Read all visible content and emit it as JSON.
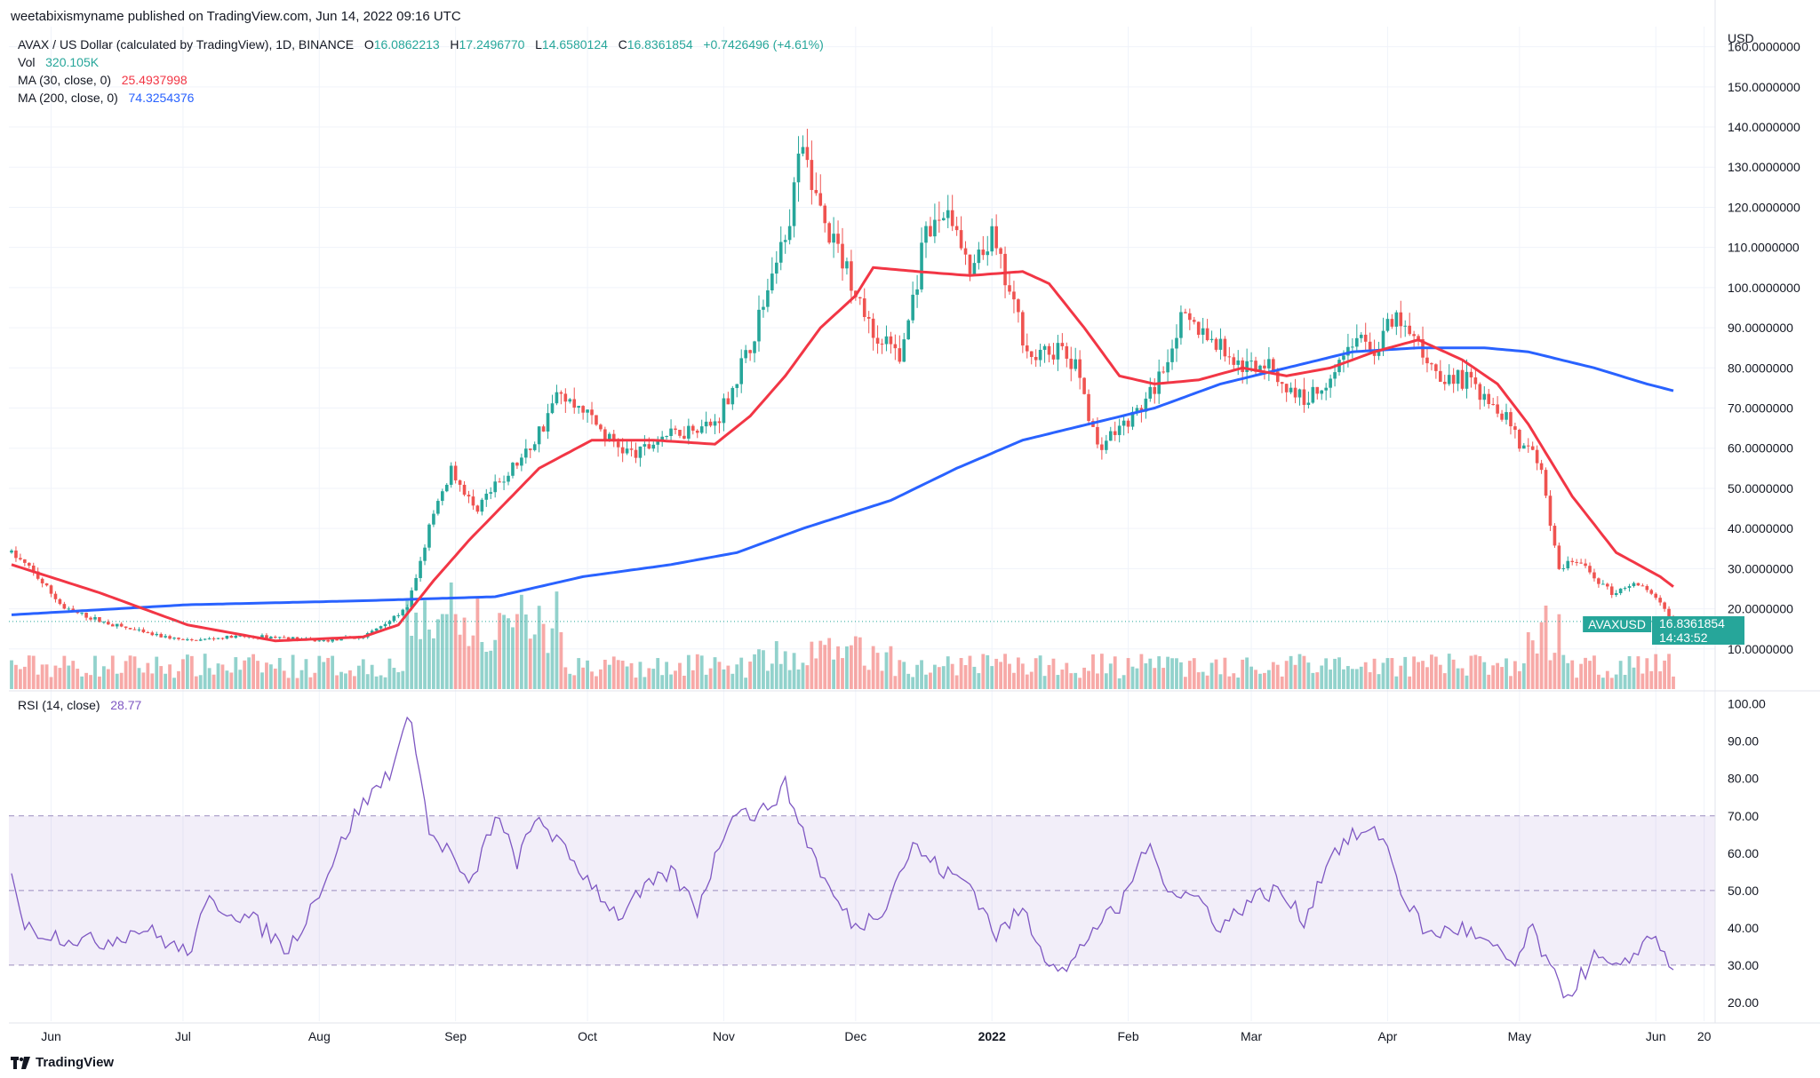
{
  "header": {
    "publisher": "weetabixismyname published on TradingView.com, Jun 14, 2022 09:16 UTC",
    "symbol_title": "AVAX / US Dollar (calculated by TradingView), 1D, BINANCE",
    "ohlc": {
      "o_label": "O",
      "o": "16.0862213",
      "h_label": "H",
      "h": "17.2496770",
      "l_label": "L",
      "l": "14.6580124",
      "c_label": "C",
      "c": "16.8361854",
      "change": "+0.7426496 (+4.61%)"
    },
    "vol_label": "Vol",
    "vol_value": "320.105K",
    "ma30_label": "MA (30, close, 0)",
    "ma30_value": "25.4937998",
    "ma200_label": "MA (200, close, 0)",
    "ma200_value": "74.3254376"
  },
  "rsi": {
    "label": "RSI (14, close)",
    "value": "28.77"
  },
  "last_price": {
    "symbol": "AVAXUSD",
    "price": "16.8361854",
    "countdown": "14:43:52"
  },
  "brand": "TradingView",
  "colors": {
    "up": "#26a69a",
    "down": "#ef5350",
    "ma30": "#f23645",
    "ma200": "#2962ff",
    "rsi": "#7e57c2"
  },
  "chart_data": [
    {
      "type": "candlestick",
      "currency_label": "USD",
      "ylim": [
        0,
        165
      ],
      "y_ticks": [
        "10.0000000",
        "20.0000000",
        "30.0000000",
        "40.0000000",
        "50.0000000",
        "60.0000000",
        "70.0000000",
        "80.0000000",
        "90.0000000",
        "100.0000000",
        "110.0000000",
        "120.0000000",
        "130.0000000",
        "140.0000000",
        "150.0000000",
        "160.0000000"
      ],
      "x_ticks": [
        "Jun",
        "Jul",
        "Aug",
        "Sep",
        "Oct",
        "Nov",
        "Dec",
        "2022",
        "Feb",
        "Mar",
        "Apr",
        "May",
        "Jun",
        "20"
      ],
      "close_anchors": [
        {
          "d": 0,
          "v": 34
        },
        {
          "d": 5,
          "v": 29
        },
        {
          "d": 12,
          "v": 20
        },
        {
          "d": 20,
          "v": 17
        },
        {
          "d": 30,
          "v": 14
        },
        {
          "d": 40,
          "v": 12
        },
        {
          "d": 50,
          "v": 13
        },
        {
          "d": 60,
          "v": 13
        },
        {
          "d": 70,
          "v": 12
        },
        {
          "d": 80,
          "v": 13
        },
        {
          "d": 90,
          "v": 20
        },
        {
          "d": 95,
          "v": 40
        },
        {
          "d": 100,
          "v": 55
        },
        {
          "d": 105,
          "v": 45
        },
        {
          "d": 110,
          "v": 50
        },
        {
          "d": 118,
          "v": 60
        },
        {
          "d": 124,
          "v": 73
        },
        {
          "d": 130,
          "v": 70
        },
        {
          "d": 136,
          "v": 62
        },
        {
          "d": 142,
          "v": 58
        },
        {
          "d": 148,
          "v": 63
        },
        {
          "d": 155,
          "v": 65
        },
        {
          "d": 160,
          "v": 66
        },
        {
          "d": 168,
          "v": 85
        },
        {
          "d": 175,
          "v": 110
        },
        {
          "d": 180,
          "v": 135
        },
        {
          "d": 185,
          "v": 115
        },
        {
          "d": 190,
          "v": 105
        },
        {
          "d": 196,
          "v": 88
        },
        {
          "d": 202,
          "v": 82
        },
        {
          "d": 208,
          "v": 112
        },
        {
          "d": 213,
          "v": 120
        },
        {
          "d": 218,
          "v": 103
        },
        {
          "d": 223,
          "v": 112
        },
        {
          "d": 228,
          "v": 95
        },
        {
          "d": 232,
          "v": 82
        },
        {
          "d": 238,
          "v": 85
        },
        {
          "d": 243,
          "v": 78
        },
        {
          "d": 247,
          "v": 60
        },
        {
          "d": 252,
          "v": 65
        },
        {
          "d": 257,
          "v": 70
        },
        {
          "d": 262,
          "v": 80
        },
        {
          "d": 266,
          "v": 92
        },
        {
          "d": 270,
          "v": 90
        },
        {
          "d": 275,
          "v": 85
        },
        {
          "d": 280,
          "v": 80
        },
        {
          "d": 285,
          "v": 82
        },
        {
          "d": 290,
          "v": 75
        },
        {
          "d": 295,
          "v": 72
        },
        {
          "d": 300,
          "v": 78
        },
        {
          "d": 305,
          "v": 87
        },
        {
          "d": 310,
          "v": 85
        },
        {
          "d": 315,
          "v": 92
        },
        {
          "d": 320,
          "v": 85
        },
        {
          "d": 325,
          "v": 78
        },
        {
          "d": 330,
          "v": 77
        },
        {
          "d": 335,
          "v": 74
        },
        {
          "d": 340,
          "v": 68
        },
        {
          "d": 344,
          "v": 60
        },
        {
          "d": 348,
          "v": 55
        },
        {
          "d": 350,
          "v": 40
        },
        {
          "d": 352,
          "v": 30
        },
        {
          "d": 356,
          "v": 32
        },
        {
          "d": 360,
          "v": 28
        },
        {
          "d": 364,
          "v": 24
        },
        {
          "d": 368,
          "v": 26
        },
        {
          "d": 372,
          "v": 25
        },
        {
          "d": 375,
          "v": 21
        },
        {
          "d": 378,
          "v": 17
        }
      ],
      "ma30_anchors": [
        {
          "d": 0,
          "v": 31
        },
        {
          "d": 20,
          "v": 24
        },
        {
          "d": 40,
          "v": 16
        },
        {
          "d": 60,
          "v": 12
        },
        {
          "d": 80,
          "v": 13
        },
        {
          "d": 88,
          "v": 16
        },
        {
          "d": 96,
          "v": 27
        },
        {
          "d": 104,
          "v": 37
        },
        {
          "d": 112,
          "v": 46
        },
        {
          "d": 120,
          "v": 55
        },
        {
          "d": 132,
          "v": 62
        },
        {
          "d": 146,
          "v": 62
        },
        {
          "d": 160,
          "v": 61
        },
        {
          "d": 168,
          "v": 68
        },
        {
          "d": 176,
          "v": 78
        },
        {
          "d": 184,
          "v": 90
        },
        {
          "d": 192,
          "v": 98
        },
        {
          "d": 196,
          "v": 105
        },
        {
          "d": 206,
          "v": 104
        },
        {
          "d": 218,
          "v": 103
        },
        {
          "d": 230,
          "v": 104
        },
        {
          "d": 236,
          "v": 101
        },
        {
          "d": 244,
          "v": 90
        },
        {
          "d": 252,
          "v": 78
        },
        {
          "d": 260,
          "v": 76
        },
        {
          "d": 270,
          "v": 77
        },
        {
          "d": 280,
          "v": 80
        },
        {
          "d": 290,
          "v": 78
        },
        {
          "d": 300,
          "v": 80
        },
        {
          "d": 310,
          "v": 84
        },
        {
          "d": 320,
          "v": 87
        },
        {
          "d": 330,
          "v": 82
        },
        {
          "d": 338,
          "v": 76
        },
        {
          "d": 345,
          "v": 66
        },
        {
          "d": 355,
          "v": 48
        },
        {
          "d": 365,
          "v": 34
        },
        {
          "d": 375,
          "v": 28
        },
        {
          "d": 378,
          "v": 25.5
        }
      ],
      "ma200_anchors": [
        {
          "d": 0,
          "v": 18.5
        },
        {
          "d": 40,
          "v": 21
        },
        {
          "d": 80,
          "v": 22
        },
        {
          "d": 110,
          "v": 23
        },
        {
          "d": 130,
          "v": 28
        },
        {
          "d": 150,
          "v": 31
        },
        {
          "d": 165,
          "v": 34
        },
        {
          "d": 180,
          "v": 40
        },
        {
          "d": 200,
          "v": 47
        },
        {
          "d": 215,
          "v": 55
        },
        {
          "d": 230,
          "v": 62
        },
        {
          "d": 245,
          "v": 66
        },
        {
          "d": 260,
          "v": 70
        },
        {
          "d": 275,
          "v": 76
        },
        {
          "d": 290,
          "v": 80
        },
        {
          "d": 305,
          "v": 84
        },
        {
          "d": 320,
          "v": 85
        },
        {
          "d": 335,
          "v": 85
        },
        {
          "d": 345,
          "v": 84
        },
        {
          "d": 360,
          "v": 80
        },
        {
          "d": 372,
          "v": 76
        },
        {
          "d": 378,
          "v": 74.3
        }
      ]
    },
    {
      "type": "line",
      "name": "RSI (14, close)",
      "ylim": [
        15,
        103
      ],
      "y_ticks": [
        "20.00",
        "30.00",
        "40.00",
        "50.00",
        "60.00",
        "70.00",
        "80.00",
        "90.00",
        "100.00"
      ],
      "band": [
        30,
        70
      ],
      "mid": 50,
      "anchors": [
        {
          "d": 0,
          "v": 56
        },
        {
          "d": 3,
          "v": 40
        },
        {
          "d": 10,
          "v": 38
        },
        {
          "d": 20,
          "v": 36
        },
        {
          "d": 30,
          "v": 40
        },
        {
          "d": 40,
          "v": 33
        },
        {
          "d": 45,
          "v": 47
        },
        {
          "d": 55,
          "v": 42
        },
        {
          "d": 63,
          "v": 34
        },
        {
          "d": 70,
          "v": 50
        },
        {
          "d": 78,
          "v": 70
        },
        {
          "d": 86,
          "v": 82
        },
        {
          "d": 91,
          "v": 97
        },
        {
          "d": 95,
          "v": 65
        },
        {
          "d": 100,
          "v": 60
        },
        {
          "d": 104,
          "v": 50
        },
        {
          "d": 110,
          "v": 70
        },
        {
          "d": 115,
          "v": 58
        },
        {
          "d": 120,
          "v": 70
        },
        {
          "d": 126,
          "v": 60
        },
        {
          "d": 132,
          "v": 52
        },
        {
          "d": 138,
          "v": 43
        },
        {
          "d": 144,
          "v": 50
        },
        {
          "d": 150,
          "v": 55
        },
        {
          "d": 156,
          "v": 45
        },
        {
          "d": 164,
          "v": 72
        },
        {
          "d": 170,
          "v": 70
        },
        {
          "d": 176,
          "v": 78
        },
        {
          "d": 180,
          "v": 66
        },
        {
          "d": 186,
          "v": 50
        },
        {
          "d": 192,
          "v": 40
        },
        {
          "d": 198,
          "v": 45
        },
        {
          "d": 205,
          "v": 62
        },
        {
          "d": 212,
          "v": 55
        },
        {
          "d": 218,
          "v": 52
        },
        {
          "d": 224,
          "v": 38
        },
        {
          "d": 230,
          "v": 45
        },
        {
          "d": 235,
          "v": 33
        },
        {
          "d": 240,
          "v": 28
        },
        {
          "d": 246,
          "v": 40
        },
        {
          "d": 252,
          "v": 45
        },
        {
          "d": 258,
          "v": 62
        },
        {
          "d": 264,
          "v": 50
        },
        {
          "d": 270,
          "v": 48
        },
        {
          "d": 275,
          "v": 40
        },
        {
          "d": 282,
          "v": 48
        },
        {
          "d": 288,
          "v": 50
        },
        {
          "d": 294,
          "v": 42
        },
        {
          "d": 300,
          "v": 60
        },
        {
          "d": 306,
          "v": 65
        },
        {
          "d": 312,
          "v": 65
        },
        {
          "d": 316,
          "v": 50
        },
        {
          "d": 322,
          "v": 38
        },
        {
          "d": 330,
          "v": 40
        },
        {
          "d": 336,
          "v": 35
        },
        {
          "d": 342,
          "v": 30
        },
        {
          "d": 346,
          "v": 40
        },
        {
          "d": 350,
          "v": 28
        },
        {
          "d": 354,
          "v": 22
        },
        {
          "d": 360,
          "v": 32
        },
        {
          "d": 366,
          "v": 28
        },
        {
          "d": 370,
          "v": 35
        },
        {
          "d": 374,
          "v": 38
        },
        {
          "d": 378,
          "v": 28.77
        }
      ]
    }
  ]
}
